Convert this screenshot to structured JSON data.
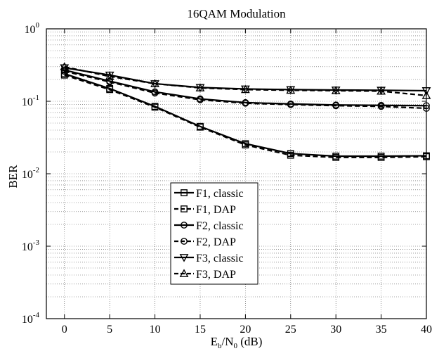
{
  "chart_data": {
    "type": "line",
    "title": "16QAM Modulation",
    "xlabel": {
      "main": "E",
      "sub1": "b",
      "mid": "/N",
      "sub2": "0",
      "tail": " (dB)"
    },
    "ylabel": "BER",
    "x": [
      0,
      5,
      10,
      15,
      20,
      25,
      30,
      35,
      40
    ],
    "xlim": [
      -2,
      40
    ],
    "ylim": [
      0.0001,
      1
    ],
    "yscale": "log",
    "grid": true,
    "legend_position": "lower-center",
    "x_ticks": [
      "0",
      "5",
      "10",
      "15",
      "20",
      "25",
      "30",
      "35",
      "40"
    ],
    "y_ticks": [
      {
        "base": "10",
        "exp": "0",
        "value": 1
      },
      {
        "base": "10",
        "exp": "-1",
        "value": 0.1
      },
      {
        "base": "10",
        "exp": "-2",
        "value": 0.01
      },
      {
        "base": "10",
        "exp": "-3",
        "value": 0.001
      },
      {
        "base": "10",
        "exp": "-4",
        "value": 0.0001
      }
    ],
    "series": [
      {
        "name": "F1, classic",
        "marker": "square",
        "dash": "solid",
        "values": [
          0.24,
          0.15,
          0.085,
          0.045,
          0.026,
          0.019,
          0.0175,
          0.0175,
          0.0177
        ]
      },
      {
        "name": "F1, DAP",
        "marker": "square",
        "dash": "dashed",
        "values": [
          0.23,
          0.145,
          0.083,
          0.044,
          0.025,
          0.018,
          0.0168,
          0.0168,
          0.0172
        ]
      },
      {
        "name": "F2, classic",
        "marker": "circle",
        "dash": "solid",
        "values": [
          0.27,
          0.19,
          0.135,
          0.108,
          0.096,
          0.092,
          0.089,
          0.088,
          0.087
        ]
      },
      {
        "name": "F2, DAP",
        "marker": "circle",
        "dash": "dashed",
        "values": [
          0.26,
          0.185,
          0.13,
          0.105,
          0.094,
          0.09,
          0.087,
          0.085,
          0.08
        ]
      },
      {
        "name": "F3, classic",
        "marker": "triangle-down",
        "dash": "solid",
        "values": [
          0.29,
          0.23,
          0.175,
          0.155,
          0.148,
          0.145,
          0.143,
          0.142,
          0.14
        ]
      },
      {
        "name": "F3, DAP",
        "marker": "triangle-up",
        "dash": "dashed",
        "values": [
          0.3,
          0.22,
          0.175,
          0.153,
          0.145,
          0.142,
          0.14,
          0.138,
          0.12
        ]
      }
    ]
  }
}
